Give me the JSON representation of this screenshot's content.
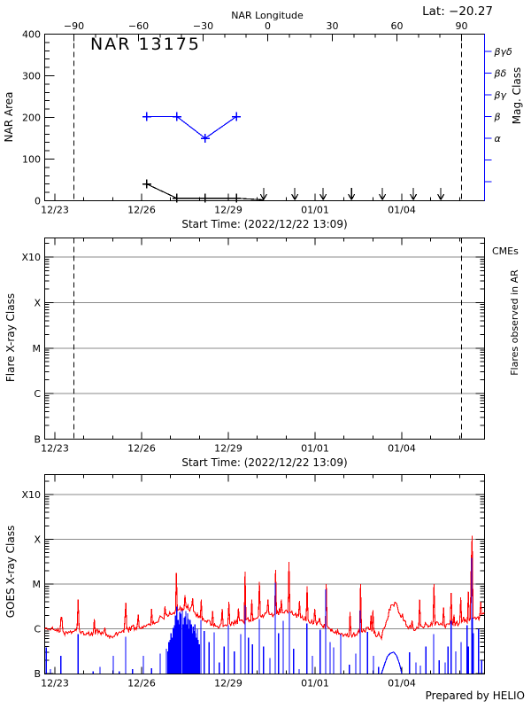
{
  "page": {
    "lat_annotation": "Lat: −20.27",
    "prepared_by": "Prepared by HELIO"
  },
  "colors": {
    "red": "#ff0000",
    "blue": "#0000ff",
    "black": "#000000",
    "grid_gray": "#8a8a8a"
  },
  "chart_data": [
    {
      "type": "line",
      "title": "NAR 13175",
      "ylabel": "NAR Area",
      "ylim": [
        0,
        400
      ],
      "y_major_ticks": [
        0,
        100,
        200,
        300,
        400
      ],
      "y_minor_step": 20,
      "xlabel": "Start Time: (2022/12/22 13:09)",
      "x_tick_labels": [
        "12/23",
        "12/26",
        "12/29",
        "01/01",
        "01/04"
      ],
      "x_major_step_days": 3,
      "x_minor_step_days": 1,
      "x_range_days": [
        -0.35,
        14.86
      ],
      "top_axis": {
        "label": "NAR Longitude",
        "major_ticks": [
          -90,
          -60,
          -30,
          0,
          30,
          60,
          90
        ],
        "minor_step": 10
      },
      "right_axis": {
        "label": "Mag. Class",
        "labels_top_to_bottom": [
          "βγδ",
          "βδ",
          "βγ",
          "β",
          "α"
        ]
      },
      "limb_dashed_lines_days": [
        0.658,
        14.06
      ],
      "series": [
        {
          "name": "NAR area",
          "color": "#000000",
          "marker": "plus",
          "points_day_area": [
            [
              3.18,
              40
            ],
            [
              4.22,
              6
            ],
            [
              5.2,
              6
            ],
            [
              6.28,
              6
            ]
          ],
          "descends_to_zero_at_day": 7.22
        },
        {
          "name": "Magnetic class",
          "color": "#0000ff",
          "marker": "plus",
          "points_day_class": [
            [
              3.18,
              "β"
            ],
            [
              4.22,
              "β"
            ],
            [
              5.2,
              "α"
            ],
            [
              6.28,
              "β"
            ]
          ]
        }
      ],
      "zero_upper_limit_arrow_days": [
        7.22,
        8.3,
        9.28,
        10.26,
        11.33,
        12.4,
        13.35
      ]
    },
    {
      "type": "line",
      "ylabel": "Flare X-ray Class",
      "y_decade_labels_top_to_bottom": [
        "X10",
        "X",
        "M",
        "C",
        "B"
      ],
      "right_label": "Flares observed in AR",
      "cme_legend": "CMEs",
      "xlabel": "Start Time: (2022/12/22 13:09)",
      "x_tick_labels": [
        "12/23",
        "12/26",
        "12/29",
        "01/01",
        "01/04"
      ],
      "limb_dashed_lines_days": [
        0.658,
        14.06
      ],
      "grid": true,
      "series": []
    },
    {
      "type": "line",
      "ylabel": "GOES X-ray Class",
      "y_decade_labels_top_to_bottom": [
        "X10",
        "X",
        "M",
        "C",
        "B"
      ],
      "x_tick_labels": [
        "12/23",
        "12/26",
        "12/29",
        "01/01",
        "01/04"
      ],
      "grid": true,
      "series": [
        {
          "name": "GOES long-channel flux",
          "color": "#ff0000",
          "units": "log10 W/m2 (B=-7, C=-6, M=-5, X=-4)",
          "baseline_day_logflux": [
            [
              -0.35,
              -5.98
            ],
            [
              0.0,
              -6.03
            ],
            [
              0.4,
              -6.1
            ],
            [
              0.75,
              -6.0
            ],
            [
              1.1,
              -6.13
            ],
            [
              1.5,
              -6.05
            ],
            [
              1.9,
              -6.17
            ],
            [
              2.3,
              -6.1
            ],
            [
              2.6,
              -6.0
            ],
            [
              3.0,
              -5.95
            ],
            [
              3.4,
              -5.85
            ],
            [
              3.8,
              -5.72
            ],
            [
              4.1,
              -5.62
            ],
            [
              4.35,
              -5.55
            ],
            [
              4.6,
              -5.52
            ],
            [
              4.85,
              -5.65
            ],
            [
              5.2,
              -5.8
            ],
            [
              5.6,
              -5.95
            ],
            [
              6.0,
              -5.88
            ],
            [
              6.4,
              -5.85
            ],
            [
              6.7,
              -5.8
            ],
            [
              7.0,
              -5.78
            ],
            [
              7.3,
              -5.65
            ],
            [
              7.55,
              -5.7
            ],
            [
              7.8,
              -5.62
            ],
            [
              8.1,
              -5.6
            ],
            [
              8.4,
              -5.72
            ],
            [
              8.8,
              -5.82
            ],
            [
              9.2,
              -5.9
            ],
            [
              9.6,
              -6.02
            ],
            [
              9.95,
              -6.12
            ],
            [
              10.3,
              -6.15
            ],
            [
              10.6,
              -6.05
            ],
            [
              10.85,
              -6.0
            ],
            [
              11.1,
              -6.12
            ],
            [
              11.3,
              -6.18
            ],
            [
              11.5,
              -5.75
            ],
            [
              11.65,
              -5.42
            ],
            [
              11.8,
              -5.45
            ],
            [
              11.95,
              -5.7
            ],
            [
              12.2,
              -5.95
            ],
            [
              12.5,
              -6.0
            ],
            [
              12.8,
              -5.92
            ],
            [
              13.2,
              -5.88
            ],
            [
              13.5,
              -5.95
            ],
            [
              13.8,
              -5.9
            ],
            [
              14.1,
              -5.85
            ],
            [
              14.4,
              -5.8
            ],
            [
              14.65,
              -5.75
            ],
            [
              14.87,
              -5.65
            ]
          ],
          "flare_spikes_day_logflux": [
            [
              0.25,
              -5.75
            ],
            [
              0.8,
              -5.35
            ],
            [
              1.35,
              -5.78
            ],
            [
              2.45,
              -5.42
            ],
            [
              2.9,
              -5.68
            ],
            [
              3.35,
              -5.55
            ],
            [
              3.8,
              -5.5
            ],
            [
              4.22,
              -4.75
            ],
            [
              4.5,
              -5.25
            ],
            [
              4.75,
              -5.32
            ],
            [
              5.05,
              -5.35
            ],
            [
              5.45,
              -5.6
            ],
            [
              5.8,
              -5.55
            ],
            [
              6.02,
              -5.4
            ],
            [
              6.58,
              -4.72
            ],
            [
              6.8,
              -5.35
            ],
            [
              7.07,
              -4.95
            ],
            [
              7.38,
              -5.35
            ],
            [
              7.62,
              -4.68
            ],
            [
              7.85,
              -5.35
            ],
            [
              8.11,
              -4.5
            ],
            [
              8.45,
              -5.38
            ],
            [
              8.72,
              -5.05
            ],
            [
              9.0,
              -5.55
            ],
            [
              9.37,
              -5.0
            ],
            [
              10.2,
              -5.62
            ],
            [
              10.56,
              -5.0
            ],
            [
              11.0,
              -5.58
            ],
            [
              12.62,
              -5.35
            ],
            [
              13.13,
              -5.0
            ],
            [
              13.45,
              -5.52
            ],
            [
              13.71,
              -5.2
            ],
            [
              14.05,
              -5.3
            ],
            [
              14.3,
              -5.17
            ],
            [
              14.39,
              -4.6
            ],
            [
              14.42,
              -3.92
            ],
            [
              14.45,
              -5.3
            ],
            [
              14.72,
              -5.4
            ]
          ]
        },
        {
          "name": "GOES short-channel spikes",
          "color": "#0000ff",
          "spikes_day_logflux": [
            [
              -0.3,
              -6.42
            ],
            [
              -0.15,
              -6.9
            ],
            [
              0.21,
              -6.6
            ],
            [
              0.8,
              -6.12
            ],
            [
              1.32,
              -6.95
            ],
            [
              1.56,
              -6.85
            ],
            [
              2.02,
              -6.6
            ],
            [
              2.23,
              -6.95
            ],
            [
              2.45,
              -6.18
            ],
            [
              2.69,
              -6.9
            ],
            [
              3.06,
              -6.6
            ],
            [
              3.34,
              -6.88
            ],
            [
              3.64,
              -6.55
            ],
            [
              3.86,
              -6.45
            ],
            [
              3.9,
              -6.5
            ],
            [
              3.94,
              -6.3
            ],
            [
              3.98,
              -6.25
            ],
            [
              4.02,
              -6.1
            ],
            [
              4.06,
              -6.2
            ],
            [
              4.09,
              -5.98
            ],
            [
              4.13,
              -5.92
            ],
            [
              4.17,
              -5.7
            ],
            [
              4.22,
              -5.5
            ],
            [
              4.26,
              -5.8
            ],
            [
              4.29,
              -5.9
            ],
            [
              4.32,
              -5.62
            ],
            [
              4.36,
              -5.66
            ],
            [
              4.41,
              -5.58
            ],
            [
              4.44,
              -5.9
            ],
            [
              4.47,
              -5.75
            ],
            [
              4.5,
              -5.72
            ],
            [
              4.53,
              -5.6
            ],
            [
              4.56,
              -5.9
            ],
            [
              4.59,
              -5.65
            ],
            [
              4.62,
              -5.78
            ],
            [
              4.65,
              -6.0
            ],
            [
              4.68,
              -5.8
            ],
            [
              4.72,
              -5.9
            ],
            [
              4.75,
              -6.1
            ],
            [
              4.78,
              -5.95
            ],
            [
              4.81,
              -6.05
            ],
            [
              4.84,
              -5.9
            ],
            [
              4.87,
              -6.1
            ],
            [
              4.9,
              -6.2
            ],
            [
              4.93,
              -6.0
            ],
            [
              4.96,
              -6.25
            ],
            [
              5.0,
              -6.35
            ],
            [
              5.05,
              -5.8
            ],
            [
              5.17,
              -6.05
            ],
            [
              5.33,
              -6.3
            ],
            [
              5.51,
              -6.08
            ],
            [
              5.69,
              -6.75
            ],
            [
              5.85,
              -6.4
            ],
            [
              6.0,
              -5.92
            ],
            [
              6.21,
              -6.5
            ],
            [
              6.43,
              -6.12
            ],
            [
              6.58,
              -5.48
            ],
            [
              6.7,
              -6.2
            ],
            [
              6.83,
              -6.35
            ],
            [
              7.07,
              -5.78
            ],
            [
              7.22,
              -6.4
            ],
            [
              7.44,
              -6.65
            ],
            [
              7.62,
              -4.97
            ],
            [
              7.74,
              -6.1
            ],
            [
              7.9,
              -5.82
            ],
            [
              8.11,
              -5.62
            ],
            [
              8.26,
              -6.45
            ],
            [
              8.45,
              -6.9
            ],
            [
              8.72,
              -5.88
            ],
            [
              8.91,
              -6.6
            ],
            [
              9.18,
              -6.02
            ],
            [
              9.37,
              -5.12
            ],
            [
              9.52,
              -6.3
            ],
            [
              9.64,
              -6.42
            ],
            [
              9.89,
              -6.12
            ],
            [
              10.19,
              -6.8
            ],
            [
              10.41,
              -6.55
            ],
            [
              10.56,
              -5.58
            ],
            [
              10.81,
              -6.07
            ],
            [
              11.02,
              -6.6
            ],
            [
              11.2,
              -6.85
            ],
            [
              12.27,
              -6.52
            ],
            [
              12.49,
              -6.75
            ],
            [
              12.64,
              -6.82
            ],
            [
              12.83,
              -6.4
            ],
            [
              13.1,
              -6.12
            ],
            [
              13.29,
              -6.7
            ],
            [
              13.5,
              -6.75
            ],
            [
              13.6,
              -6.4
            ],
            [
              13.71,
              -5.82
            ],
            [
              13.87,
              -6.5
            ],
            [
              14.05,
              -6.3
            ],
            [
              14.26,
              -5.92
            ],
            [
              14.3,
              -6.4
            ],
            [
              14.42,
              -4.42
            ],
            [
              14.45,
              -5.75
            ],
            [
              14.48,
              -6.1
            ],
            [
              14.66,
              -6.0
            ],
            [
              14.76,
              -6.7
            ]
          ],
          "bump_day_logflux": [
            [
              11.3,
              -7.0
            ],
            [
              11.4,
              -6.8
            ],
            [
              11.5,
              -6.62
            ],
            [
              11.6,
              -6.55
            ],
            [
              11.72,
              -6.52
            ],
            [
              11.82,
              -6.6
            ],
            [
              11.92,
              -6.78
            ],
            [
              12.0,
              -7.0
            ]
          ]
        }
      ],
      "footer": "Prepared by HELIO"
    }
  ]
}
